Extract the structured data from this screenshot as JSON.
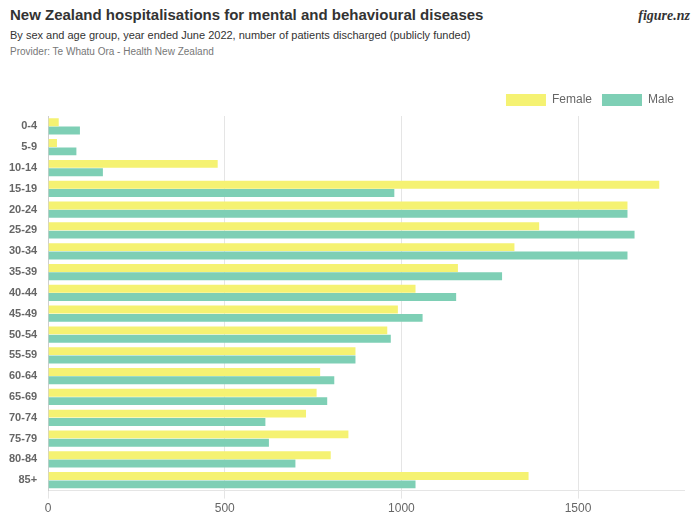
{
  "chart_data": {
    "type": "bar",
    "orientation": "horizontal",
    "title": "New Zealand hospitalisations for mental and behavioural diseases",
    "subtitle": "By sex and age group, year ended June 2022, number of patients discharged (publicly funded)",
    "annotations": [
      "Provider: Te Whatu Ora - Health New Zealand",
      "figure.nz"
    ],
    "categories": [
      "0-4",
      "5-9",
      "10-14",
      "15-19",
      "20-24",
      "25-29",
      "30-34",
      "35-39",
      "40-44",
      "45-49",
      "50-54",
      "55-59",
      "60-64",
      "65-69",
      "70-74",
      "75-79",
      "80-84",
      "85+"
    ],
    "series": [
      {
        "name": "Female",
        "color": "#f5f272",
        "values": [
          30,
          25,
          480,
          1730,
          1640,
          1390,
          1320,
          1160,
          1040,
          990,
          960,
          870,
          770,
          760,
          730,
          850,
          800,
          1360
        ]
      },
      {
        "name": "Male",
        "color": "#7ecfb5",
        "values": [
          90,
          80,
          155,
          980,
          1640,
          1660,
          1640,
          1285,
          1155,
          1060,
          970,
          870,
          810,
          790,
          615,
          625,
          700,
          1040
        ]
      }
    ],
    "xlim": [
      0,
      1800
    ],
    "xticks": [
      0,
      500,
      1000,
      1500
    ],
    "grid": "x",
    "legend": "top-right"
  }
}
